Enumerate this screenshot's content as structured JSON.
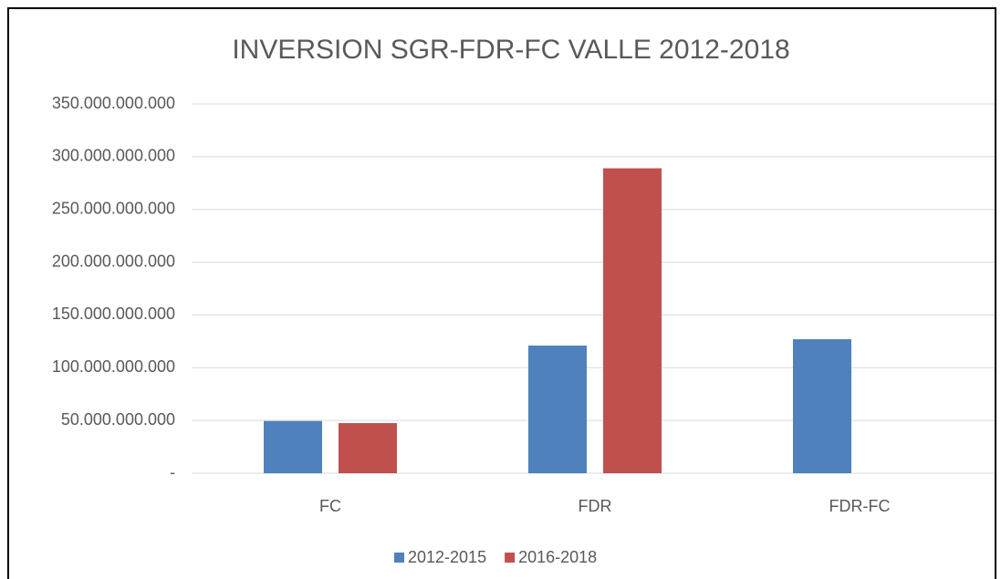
{
  "chart_data": {
    "type": "bar",
    "title": "INVERSION SGR-FDR-FC VALLE 2012-2018",
    "categories": [
      "FC",
      "FDR",
      "FDR-FC"
    ],
    "series": [
      {
        "name": "2012-2015",
        "color": "#4f81bd",
        "values": [
          49500000000,
          121000000000,
          127000000000
        ]
      },
      {
        "name": "2016-2018",
        "color": "#c0504d",
        "values": [
          47500000000,
          289000000000,
          0
        ]
      }
    ],
    "ylim": [
      0,
      350000000000
    ],
    "yticks": [
      {
        "value": 0,
        "label": "-"
      },
      {
        "value": 50000000000,
        "label": "50.000.000.000"
      },
      {
        "value": 100000000000,
        "label": "100.000.000.000"
      },
      {
        "value": 150000000000,
        "label": "150.000.000.000"
      },
      {
        "value": 200000000000,
        "label": "200.000.000.000"
      },
      {
        "value": 250000000000,
        "label": "250.000.000.000"
      },
      {
        "value": 300000000000,
        "label": "300.000.000.000"
      },
      {
        "value": 350000000000,
        "label": "350.000.000.000"
      }
    ],
    "grid": true,
    "legend": "bottom"
  }
}
